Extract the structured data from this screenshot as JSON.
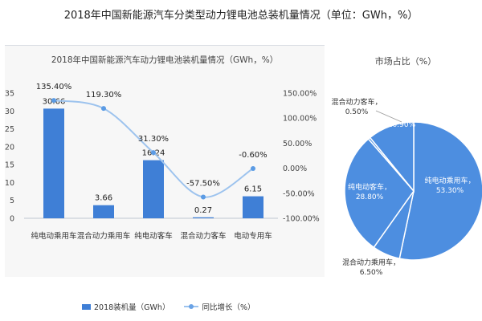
{
  "page_title": "2018年中国新能源汽车分类型动力锂电池总装机量情况（单位：GWh，%）",
  "chart_data": [
    {
      "type": "bar",
      "title": "2018年中国新能源汽车动力锂电池装机量情况（GWh，%）",
      "categories": [
        "纯电动乘用车",
        "混合动力乘用车",
        "纯电动客车",
        "混合动力客车",
        "电动专用车"
      ],
      "series": [
        {
          "name": "2018装机量（GWh）",
          "type": "bar",
          "axis": "left",
          "values": [
            30.66,
            3.66,
            16.24,
            0.27,
            6.15
          ],
          "labels": [
            "30.66",
            "3.66",
            "16.24",
            "0.27",
            "6.15"
          ]
        },
        {
          "name": "同比增长（%）",
          "type": "line",
          "axis": "right",
          "values": [
            135.4,
            119.3,
            31.3,
            -57.5,
            -0.6
          ],
          "labels": [
            "135.40%",
            "119.30%",
            "31.30%",
            "-57.50%",
            "-0.60%"
          ]
        }
      ],
      "y_left": {
        "ylim": [
          0,
          35
        ],
        "ticks": [
          "0",
          "5",
          "10",
          "15",
          "20",
          "25",
          "30",
          "35"
        ]
      },
      "y_right": {
        "ylim": [
          -100,
          150
        ],
        "ticks": [
          "-100.00%",
          "-50.00%",
          "0.00%",
          "50.00%",
          "100.00%",
          "150.00%"
        ]
      },
      "legend": "bottom",
      "colors": {
        "bar": "#3f7fd6",
        "line": "#9dc3ee",
        "marker": "#5b9be4"
      }
    },
    {
      "type": "pie",
      "title": "市场占比（%）",
      "slices": [
        {
          "label": "纯电动乘用车",
          "value": 53.3,
          "text": "53.30%"
        },
        {
          "label": "混合动力乘用车",
          "value": 6.5,
          "text": "6.50%"
        },
        {
          "label": "纯电动客车",
          "value": 28.8,
          "text": "28.80%"
        },
        {
          "label": "混合动力客车",
          "value": 0.5,
          "text": "0.50%"
        },
        {
          "label": "电动专用车",
          "value": 10.9,
          "text": "10.90%"
        }
      ],
      "colors": {
        "slice": "#4d8ee0",
        "border": "#ffffff"
      }
    }
  ]
}
